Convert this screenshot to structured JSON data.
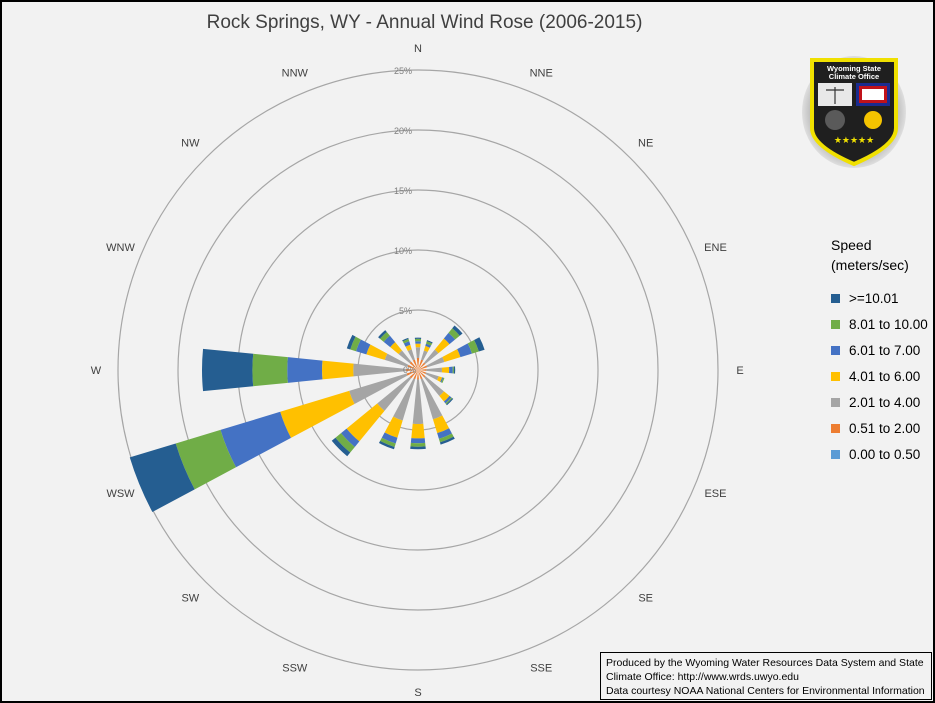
{
  "title": "Rock Springs, WY - Annual Wind Rose (2006-2015)",
  "logo": {
    "text_line1": "Wyoming State",
    "text_line2": "Climate Office",
    "stars": "★★★★★",
    "colors": {
      "border": "#f0e000",
      "shield": "#1f1f1f",
      "flag_blue": "#1a2b8f",
      "flag_red": "#c0121a",
      "sun": "#f5c400",
      "earth": "#5a5a5a"
    }
  },
  "legend": {
    "title": "Speed\n(meters/sec)"
  },
  "credits": [
    "Produced by the Wyoming Water Resources Data System and State",
    "Climate Office: http://www.wrds.uwyo.edu",
    "Data courtesy NOAA National Centers for Environmental Information"
  ],
  "chart_data": {
    "type": "radar",
    "subtype": "stacked-wind-rose",
    "title": "Rock Springs, WY - Annual Wind Rose (2006-2015)",
    "radial_ticks": [
      "5%",
      "10%",
      "15%",
      "20%",
      "25%"
    ],
    "radial_values": [
      5,
      10,
      15,
      20,
      25
    ],
    "radial_max": 25,
    "directions": [
      "N",
      "NNE",
      "NE",
      "ENE",
      "E",
      "ESE",
      "SE",
      "SSE",
      "S",
      "SSW",
      "SW",
      "WSW",
      "W",
      "WNW",
      "NW",
      "NNW"
    ],
    "legend_position": "right",
    "series": [
      {
        "name": "0.00 to 0.50",
        "color": "#5b9bd5",
        "values": [
          0,
          0,
          0,
          0,
          0,
          0,
          0,
          0,
          0,
          0,
          0,
          0,
          0,
          0,
          0,
          0
        ]
      },
      {
        "name": "0.51 to 2.00",
        "color": "#ed7d31",
        "values": [
          1.0,
          0.9,
          0.8,
          0.8,
          0.7,
          0.7,
          0.8,
          0.8,
          0.8,
          0.8,
          0.9,
          1.0,
          1.0,
          0.9,
          0.9,
          0.9
        ]
      },
      {
        "name": "2.01 to 4.00",
        "color": "#a5a5a5",
        "values": [
          0.9,
          0.8,
          1.4,
          1.5,
          1.3,
          1.1,
          2.0,
          3.5,
          3.7,
          3.6,
          3.5,
          5.0,
          4.4,
          2.0,
          1.2,
          0.9
        ]
      },
      {
        "name": "4.01 to 6.00",
        "color": "#ffc000",
        "values": [
          0.3,
          0.4,
          1.2,
          1.4,
          0.6,
          0.3,
          0.6,
          1.2,
          1.2,
          1.5,
          3.3,
          6.0,
          2.6,
          1.6,
          0.9,
          0.4
        ]
      },
      {
        "name": "6.01 to 7.00",
        "color": "#4472c4",
        "values": [
          0.2,
          0.2,
          0.6,
          1.0,
          0.3,
          0.1,
          0.2,
          0.5,
          0.4,
          0.5,
          0.6,
          5.2,
          2.9,
          0.9,
          0.7,
          0.3
        ]
      },
      {
        "name": "8.01 to 10.00",
        "color": "#70ad47",
        "values": [
          0.2,
          0.2,
          0.5,
          0.6,
          0.1,
          0.1,
          0.1,
          0.3,
          0.3,
          0.3,
          0.6,
          3.9,
          2.9,
          0.5,
          0.4,
          0.2
        ]
      },
      {
        "name": ">=10.01",
        "color": "#255e91",
        "values": [
          0.1,
          0.1,
          0.3,
          0.5,
          0.1,
          0.0,
          0.1,
          0.2,
          0.2,
          0.2,
          0.4,
          4.0,
          4.2,
          0.3,
          0.2,
          0.1
        ]
      }
    ]
  }
}
